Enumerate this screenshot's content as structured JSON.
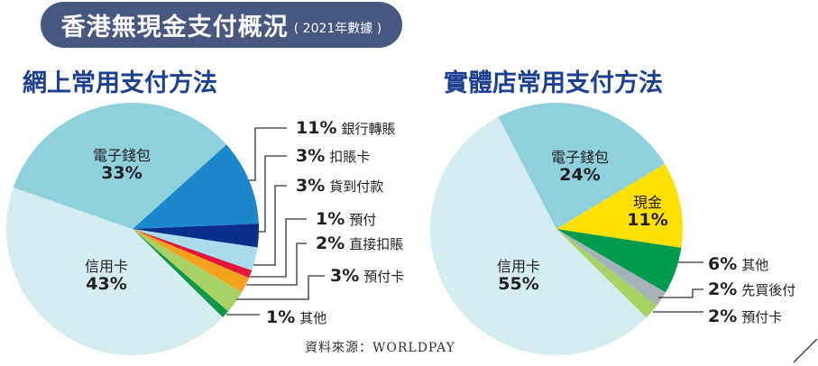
{
  "title": "香港無現金支付概況",
  "subtitle": "( 2021年數據 )",
  "source": "資料來源：WORLDPAY",
  "chart_data": [
    {
      "type": "pie",
      "title": "網上常用支付方法",
      "slices": [
        {
          "label": "銀行轉賬",
          "value": 11,
          "color": "#1b87cc"
        },
        {
          "label": "扣賬卡",
          "value": 3,
          "color": "#0a2e8a"
        },
        {
          "label": "貨到付款",
          "value": 3,
          "color": "#a9dcec"
        },
        {
          "label": "預付",
          "value": 1,
          "color": "#e4163a"
        },
        {
          "label": "直接扣賬",
          "value": 2,
          "color": "#f4a21c"
        },
        {
          "label": "預付卡",
          "value": 3,
          "color": "#a8d165"
        },
        {
          "label": "其他",
          "value": 1,
          "color": "#0f9648"
        },
        {
          "label": "信用卡",
          "value": 43,
          "color": "#d4ecf0"
        },
        {
          "label": "電子錢包",
          "value": 33,
          "color": "#8fd0dd"
        }
      ]
    },
    {
      "type": "pie",
      "title": "實體店常用支付方法",
      "slices": [
        {
          "label": "現金",
          "value": 11,
          "color": "#ffe000"
        },
        {
          "label": "其他",
          "value": 6,
          "color": "#009a4c"
        },
        {
          "label": "先買後付",
          "value": 2,
          "color": "#a6b2ba"
        },
        {
          "label": "預付卡",
          "value": 2,
          "color": "#a8d165"
        },
        {
          "label": "信用卡",
          "value": 55,
          "color": "#d4ecf0"
        },
        {
          "label": "電子錢包",
          "value": 24,
          "color": "#8fd0dd"
        }
      ]
    }
  ],
  "pct": {
    "l0": "11%",
    "l1": "3%",
    "l2": "3%",
    "l3": "1%",
    "l4": "2%",
    "l5": "3%",
    "l6": "1%",
    "l7": "43%",
    "l8": "33%",
    "r0": "11%",
    "r1": "6%",
    "r2": "2%",
    "r3": "2%",
    "r4": "55%",
    "r5": "24%"
  }
}
